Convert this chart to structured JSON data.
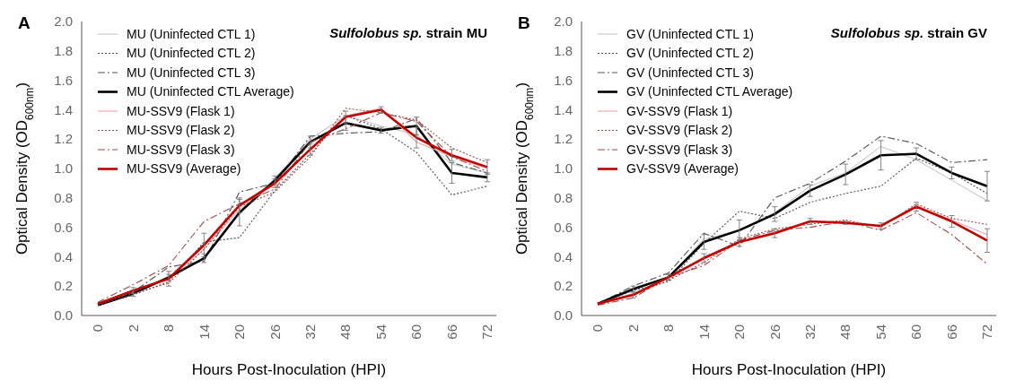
{
  "chart_data": [
    {
      "type": "line",
      "title": "Sulfolobus sp. strain MU",
      "annotations": [
        "A"
      ],
      "xlabel": "Hours Post-Inoculation (HPI)",
      "ylabel": "Optical Density (OD$_{600nm}$)",
      "categories": [
        "0",
        "2",
        "8",
        "14",
        "20",
        "26",
        "32",
        "48",
        "54",
        "60",
        "66",
        "72"
      ],
      "ylim": [
        0,
        2
      ],
      "yticks": [
        "0.0",
        0.2,
        0.4,
        0.6,
        0.8,
        "1.0",
        1.2,
        1.4,
        1.6,
        1.8,
        "2.0"
      ],
      "grid": false,
      "legend": "top left",
      "series": [
        {
          "name": "MU (Uninfected CTL 1)",
          "color": "#c8c8c8",
          "line_style": "solid",
          "values": [
            0.07,
            0.15,
            0.25,
            0.45,
            0.72,
            0.93,
            1.2,
            1.36,
            1.29,
            1.23,
            1.03,
            0.97
          ]
        },
        {
          "name": "MU (Uninfected CTL 2)",
          "color": "#505050",
          "line_style": "dotted",
          "values": [
            0.07,
            0.14,
            0.23,
            0.5,
            0.53,
            0.85,
            1.1,
            1.36,
            1.27,
            1.11,
            0.82,
            0.88
          ]
        },
        {
          "name": "MU (Uninfected CTL 3)",
          "color": "#505050",
          "line_style": "dashed",
          "values": [
            0.08,
            0.16,
            0.33,
            0.37,
            0.84,
            0.9,
            1.22,
            1.24,
            1.25,
            1.34,
            1.04,
            0.97
          ]
        },
        {
          "name": "MU (Uninfected CTL Average)",
          "color": "#000000",
          "line_style": "solid",
          "values": [
            0.07,
            0.15,
            0.26,
            0.39,
            0.7,
            0.92,
            1.18,
            1.31,
            1.26,
            1.29,
            0.97,
            0.94
          ],
          "errors": [
            null,
            0.02,
            0.02,
            0.03,
            0.09,
            0.03,
            0.04,
            0.05,
            0.02,
            0.06,
            0.07,
            0.03
          ]
        },
        {
          "name": "MU-SSV9 (Flask 1)",
          "color": "#e8a8a8",
          "line_style": "solid",
          "values": [
            0.08,
            0.17,
            0.25,
            0.47,
            0.74,
            0.89,
            1.13,
            1.36,
            1.41,
            1.18,
            1.08,
            1.0
          ]
        },
        {
          "name": "MU-SSV9 (Flask 2)",
          "color": "#a04848",
          "line_style": "dotted",
          "values": [
            0.07,
            0.15,
            0.22,
            0.45,
            0.74,
            0.84,
            1.08,
            1.41,
            1.38,
            1.33,
            1.14,
            1.04
          ]
        },
        {
          "name": "MU-SSV9 (Flask 3)",
          "color": "#a04848",
          "line_style": "dashed",
          "values": [
            0.09,
            0.21,
            0.34,
            0.64,
            0.76,
            0.86,
            1.18,
            1.27,
            1.38,
            1.32,
            1.08,
            0.98
          ]
        },
        {
          "name": "MU-SSV9 (Average)",
          "color": "#c00000",
          "line_style": "solid",
          "values": [
            0.08,
            0.17,
            0.25,
            0.48,
            0.75,
            0.9,
            1.13,
            1.35,
            1.4,
            1.21,
            1.09,
            1.01
          ],
          "errors": [
            null,
            0.02,
            0.05,
            0.08,
            0.05,
            0.03,
            0.04,
            0.04,
            0.02,
            0.07,
            0.04,
            0.05
          ]
        }
      ]
    },
    {
      "type": "line",
      "title": "Sulfolobus sp. strain GV",
      "annotations": [
        "B"
      ],
      "xlabel": "Hours Post-Inoculation (HPI)",
      "ylabel": "Optical Density (OD$_{600nm}$)",
      "categories": [
        "0",
        "2",
        "8",
        "14",
        "20",
        "26",
        "32",
        "48",
        "54",
        "60",
        "66",
        "72"
      ],
      "ylim": [
        0,
        2
      ],
      "yticks": [
        "0.0",
        0.2,
        0.4,
        0.6,
        0.8,
        "1.0",
        1.2,
        1.4,
        1.6,
        1.8,
        "2.0"
      ],
      "grid": false,
      "legend": "top left",
      "series": [
        {
          "name": "GV (Uninfected CTL 1)",
          "color": "#c8c8c8",
          "line_style": "solid",
          "values": [
            0.08,
            0.17,
            0.26,
            0.52,
            0.58,
            0.7,
            0.88,
            0.97,
            1.15,
            1.06,
            0.92,
            0.78
          ]
        },
        {
          "name": "GV (Uninfected CTL 2)",
          "color": "#505050",
          "line_style": "dotted",
          "values": [
            0.08,
            0.17,
            0.23,
            0.49,
            0.71,
            0.66,
            0.77,
            0.83,
            0.88,
            1.07,
            0.97,
            0.83
          ]
        },
        {
          "name": "GV (Uninfected CTL 3)",
          "color": "#505050",
          "line_style": "dashed",
          "values": [
            0.08,
            0.2,
            0.29,
            0.56,
            0.47,
            0.8,
            0.9,
            1.05,
            1.22,
            1.17,
            1.04,
            1.06
          ]
        },
        {
          "name": "GV (Uninfected CTL Average)",
          "color": "#000000",
          "line_style": "solid",
          "values": [
            0.08,
            0.18,
            0.26,
            0.5,
            0.58,
            0.69,
            0.85,
            0.96,
            1.09,
            1.1,
            0.97,
            0.88
          ],
          "errors": [
            null,
            0.02,
            0.02,
            0.05,
            0.07,
            0.05,
            0.04,
            0.07,
            0.1,
            0.04,
            0.04,
            0.1
          ]
        },
        {
          "name": "GV-SSV9 (Flask 1)",
          "color": "#e8a8a8",
          "line_style": "solid",
          "values": [
            0.08,
            0.15,
            0.26,
            0.4,
            0.5,
            0.57,
            0.64,
            0.64,
            0.61,
            0.75,
            0.65,
            0.55
          ]
        },
        {
          "name": "GV-SSV9 (Flask 2)",
          "color": "#a04848",
          "line_style": "dotted",
          "values": [
            0.08,
            0.14,
            0.24,
            0.36,
            0.52,
            0.59,
            0.62,
            0.65,
            0.6,
            0.76,
            0.66,
            0.62
          ]
        },
        {
          "name": "GV-SSV9 (Flask 3)",
          "color": "#a04848",
          "line_style": "dashed",
          "values": [
            0.07,
            0.12,
            0.26,
            0.34,
            0.51,
            0.58,
            0.6,
            0.64,
            0.58,
            0.7,
            0.55,
            0.35
          ]
        },
        {
          "name": "GV-SSV9 (Average)",
          "color": "#c00000",
          "line_style": "solid",
          "values": [
            0.08,
            0.14,
            0.26,
            0.39,
            0.5,
            0.56,
            0.64,
            0.63,
            0.61,
            0.74,
            0.64,
            0.51
          ],
          "errors": [
            null,
            0.02,
            0.02,
            0.03,
            0.03,
            0.03,
            0.02,
            0.01,
            0.02,
            0.03,
            0.04,
            0.08
          ]
        }
      ]
    }
  ]
}
